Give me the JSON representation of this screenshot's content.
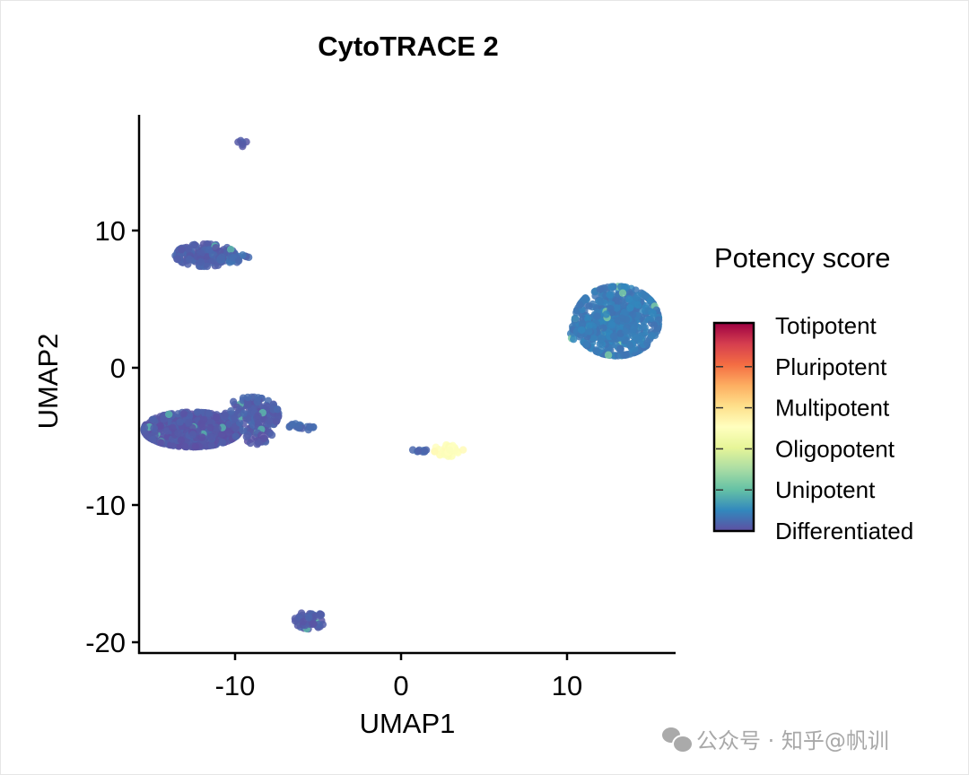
{
  "chart_data": {
    "type": "scatter",
    "title": "CytoTRACE 2",
    "xlabel": "UMAP1",
    "ylabel": "UMAP2",
    "xlim": [
      -15.8,
      16.5
    ],
    "ylim": [
      -20.5,
      18.5
    ],
    "xticks": [
      -10,
      0,
      10
    ],
    "yticks": [
      -20,
      -10,
      0,
      10
    ],
    "xtick_labels": [
      "-10",
      "0",
      "10"
    ],
    "ytick_labels": [
      "-20",
      "-10",
      "0",
      "10"
    ],
    "grid": false,
    "legend": {
      "title": "Potency score",
      "placement": "right",
      "labels": [
        "Totipotent",
        "Pluripotent",
        "Multipotent",
        "Oligopotent",
        "Unipotent",
        "Differentiated"
      ],
      "colors": [
        "#9E0142",
        "#D53E4F",
        "#F46D43",
        "#FDAE61",
        "#FEE08B",
        "#FFFFBF",
        "#E6F598",
        "#ABDDA4",
        "#66C2A5",
        "#3288BD",
        "#5E4FA2"
      ]
    },
    "clusters": [
      {
        "name": "top-dot",
        "cx": -9.6,
        "cy": 16.4,
        "sx": 0.2,
        "sy": 0.15,
        "n": 6,
        "score": 0.02
      },
      {
        "name": "upper-left",
        "cx": -11.8,
        "cy": 8.2,
        "sx": 1.0,
        "sy": 0.45,
        "n": 160,
        "score": 0.03
      },
      {
        "name": "upper-left-tail",
        "cx": -10.0,
        "cy": 7.9,
        "sx": 0.5,
        "sy": 0.2,
        "n": 20,
        "score": 0.05
      },
      {
        "name": "big-left",
        "cx": -12.6,
        "cy": -4.5,
        "sx": 1.6,
        "sy": 0.7,
        "n": 700,
        "score": 0.02
      },
      {
        "name": "big-left-branch",
        "cx": -9.0,
        "cy": -3.4,
        "sx": 0.9,
        "sy": 0.7,
        "n": 160,
        "score": 0.03
      },
      {
        "name": "big-left-tail",
        "cx": -8.6,
        "cy": -5.2,
        "sx": 0.5,
        "sy": 0.4,
        "n": 30,
        "score": 0.02
      },
      {
        "name": "small-left",
        "cx": -6.0,
        "cy": -4.3,
        "sx": 0.4,
        "sy": 0.15,
        "n": 20,
        "score": 0.05
      },
      {
        "name": "bottom",
        "cx": -5.5,
        "cy": -18.4,
        "sx": 0.5,
        "sy": 0.35,
        "n": 50,
        "score": 0.03
      },
      {
        "name": "mid-purple",
        "cx": 1.2,
        "cy": -6.1,
        "sx": 0.3,
        "sy": 0.15,
        "n": 10,
        "score": 0.05
      },
      {
        "name": "mid-yellow",
        "cx": 2.9,
        "cy": -6.0,
        "sx": 0.5,
        "sy": 0.25,
        "n": 35,
        "score": 0.5
      },
      {
        "name": "right-main",
        "cx": 13.0,
        "cy": 3.4,
        "sx": 1.4,
        "sy": 1.4,
        "n": 600,
        "score": 0.08
      },
      {
        "name": "right-lobe",
        "cx": 10.9,
        "cy": 2.6,
        "sx": 0.5,
        "sy": 0.35,
        "n": 40,
        "score": 0.08
      }
    ]
  },
  "watermark": "公众号 · 知乎@帆训"
}
